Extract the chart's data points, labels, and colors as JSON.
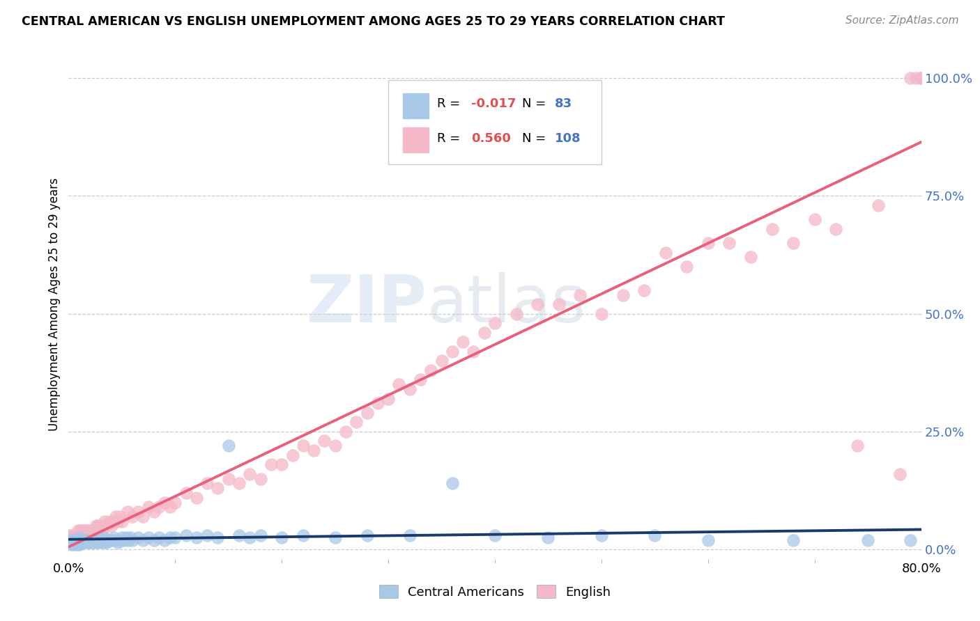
{
  "title": "CENTRAL AMERICAN VS ENGLISH UNEMPLOYMENT AMONG AGES 25 TO 29 YEARS CORRELATION CHART",
  "source": "Source: ZipAtlas.com",
  "ylabel": "Unemployment Among Ages 25 to 29 years",
  "xlim": [
    0.0,
    0.8
  ],
  "ylim": [
    -0.02,
    1.06
  ],
  "color_blue": "#a8c8e8",
  "color_pink": "#f4b8c8",
  "line_color_blue": "#1a3a6b",
  "line_color_pink": "#e8607a",
  "watermark_zip": "ZIP",
  "watermark_atlas": "atlas",
  "legend_label_blue": "Central Americans",
  "legend_label_pink": "English",
  "blue_scatter_x": [
    0.0,
    0.002,
    0.003,
    0.004,
    0.005,
    0.006,
    0.007,
    0.008,
    0.009,
    0.01,
    0.01,
    0.01,
    0.01,
    0.01,
    0.011,
    0.012,
    0.013,
    0.014,
    0.015,
    0.016,
    0.017,
    0.018,
    0.019,
    0.02,
    0.02,
    0.021,
    0.022,
    0.023,
    0.024,
    0.025,
    0.026,
    0.027,
    0.028,
    0.029,
    0.03,
    0.031,
    0.032,
    0.033,
    0.034,
    0.035,
    0.036,
    0.038,
    0.04,
    0.042,
    0.044,
    0.046,
    0.048,
    0.05,
    0.052,
    0.054,
    0.056,
    0.058,
    0.06,
    0.065,
    0.07,
    0.075,
    0.08,
    0.085,
    0.09,
    0.095,
    0.1,
    0.11,
    0.12,
    0.13,
    0.14,
    0.15,
    0.16,
    0.17,
    0.18,
    0.2,
    0.22,
    0.25,
    0.28,
    0.32,
    0.36,
    0.4,
    0.45,
    0.5,
    0.55,
    0.6,
    0.68,
    0.75,
    0.79
  ],
  "blue_scatter_y": [
    0.02,
    0.01,
    0.02,
    0.01,
    0.015,
    0.01,
    0.02,
    0.015,
    0.01,
    0.02,
    0.015,
    0.025,
    0.01,
    0.02,
    0.015,
    0.02,
    0.015,
    0.02,
    0.015,
    0.02,
    0.015,
    0.02,
    0.015,
    0.02,
    0.015,
    0.02,
    0.015,
    0.02,
    0.015,
    0.02,
    0.015,
    0.02,
    0.015,
    0.02,
    0.02,
    0.015,
    0.02,
    0.025,
    0.015,
    0.02,
    0.015,
    0.02,
    0.02,
    0.025,
    0.02,
    0.015,
    0.02,
    0.025,
    0.02,
    0.025,
    0.02,
    0.025,
    0.02,
    0.025,
    0.02,
    0.025,
    0.02,
    0.025,
    0.02,
    0.025,
    0.025,
    0.03,
    0.025,
    0.03,
    0.025,
    0.22,
    0.03,
    0.025,
    0.03,
    0.025,
    0.03,
    0.025,
    0.03,
    0.03,
    0.14,
    0.03,
    0.025,
    0.03,
    0.03,
    0.02,
    0.02,
    0.02,
    0.02
  ],
  "pink_scatter_x": [
    0.0,
    0.001,
    0.003,
    0.005,
    0.007,
    0.009,
    0.01,
    0.011,
    0.012,
    0.013,
    0.014,
    0.015,
    0.016,
    0.017,
    0.018,
    0.019,
    0.02,
    0.021,
    0.022,
    0.023,
    0.024,
    0.025,
    0.026,
    0.027,
    0.028,
    0.029,
    0.03,
    0.032,
    0.034,
    0.036,
    0.038,
    0.04,
    0.042,
    0.044,
    0.046,
    0.048,
    0.05,
    0.055,
    0.06,
    0.065,
    0.07,
    0.075,
    0.08,
    0.085,
    0.09,
    0.095,
    0.1,
    0.11,
    0.12,
    0.13,
    0.14,
    0.15,
    0.16,
    0.17,
    0.18,
    0.19,
    0.2,
    0.21,
    0.22,
    0.23,
    0.24,
    0.25,
    0.26,
    0.27,
    0.28,
    0.29,
    0.3,
    0.31,
    0.32,
    0.33,
    0.34,
    0.35,
    0.36,
    0.37,
    0.38,
    0.39,
    0.4,
    0.42,
    0.44,
    0.46,
    0.48,
    0.5,
    0.52,
    0.54,
    0.56,
    0.58,
    0.6,
    0.62,
    0.64,
    0.66,
    0.68,
    0.7,
    0.72,
    0.74,
    0.76,
    0.78,
    0.79,
    0.795,
    0.8,
    0.8,
    0.8,
    0.8,
    0.8,
    0.8,
    0.8,
    0.8,
    0.8,
    0.8
  ],
  "pink_scatter_y": [
    0.03,
    0.02,
    0.03,
    0.02,
    0.03,
    0.04,
    0.03,
    0.04,
    0.03,
    0.04,
    0.03,
    0.04,
    0.03,
    0.04,
    0.03,
    0.04,
    0.03,
    0.04,
    0.035,
    0.04,
    0.035,
    0.04,
    0.05,
    0.04,
    0.05,
    0.04,
    0.05,
    0.04,
    0.06,
    0.05,
    0.06,
    0.05,
    0.06,
    0.07,
    0.06,
    0.07,
    0.06,
    0.08,
    0.07,
    0.08,
    0.07,
    0.09,
    0.08,
    0.09,
    0.1,
    0.09,
    0.1,
    0.12,
    0.11,
    0.14,
    0.13,
    0.15,
    0.14,
    0.16,
    0.15,
    0.18,
    0.18,
    0.2,
    0.22,
    0.21,
    0.23,
    0.22,
    0.25,
    0.27,
    0.29,
    0.31,
    0.32,
    0.35,
    0.34,
    0.36,
    0.38,
    0.4,
    0.42,
    0.44,
    0.42,
    0.46,
    0.48,
    0.5,
    0.52,
    0.52,
    0.54,
    0.5,
    0.54,
    0.55,
    0.63,
    0.6,
    0.65,
    0.65,
    0.62,
    0.68,
    0.65,
    0.7,
    0.68,
    0.22,
    0.73,
    0.16,
    1.0,
    1.0,
    1.0,
    1.0,
    1.0,
    1.0,
    1.0,
    1.0,
    1.0,
    1.0,
    1.0,
    1.0
  ]
}
